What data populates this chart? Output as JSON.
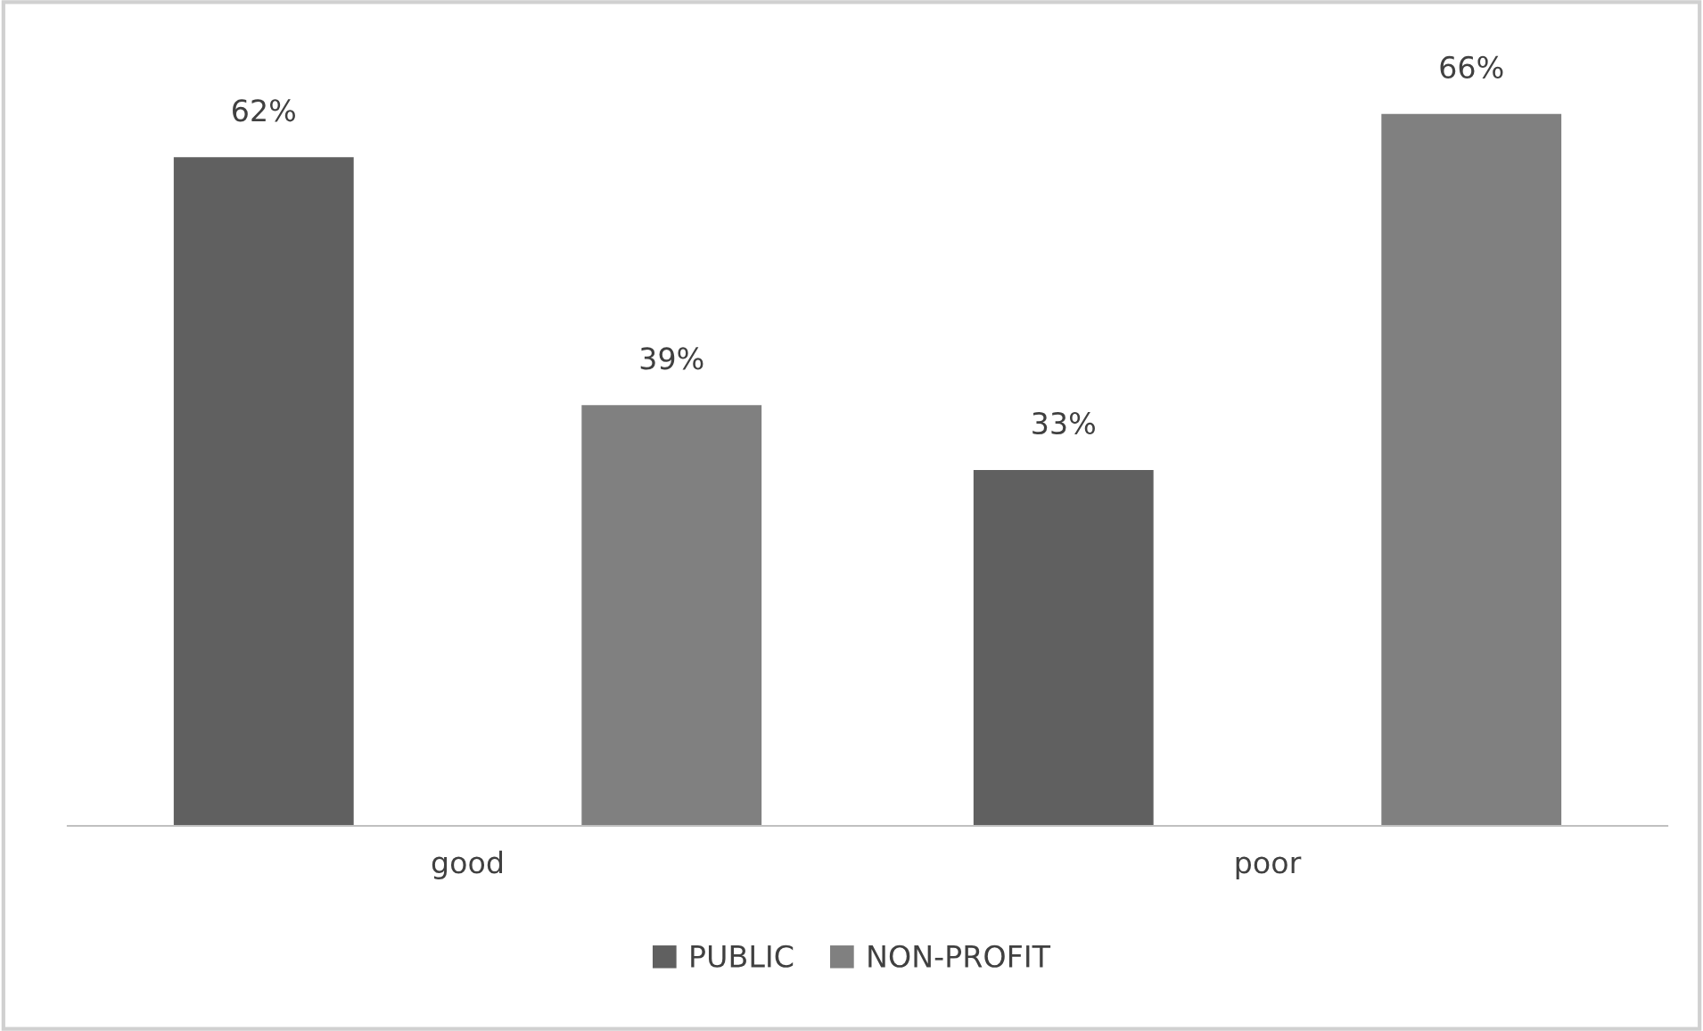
{
  "chart_data": {
    "type": "bar",
    "categories": [
      "good",
      "poor"
    ],
    "series": [
      {
        "name": "PUBLIC",
        "color": "#606060",
        "values": [
          62,
          33
        ],
        "value_labels": [
          "62%",
          "33%"
        ]
      },
      {
        "name": "NON-PROFIT",
        "color": "#808080",
        "values": [
          39,
          66
        ],
        "value_labels": [
          "39%",
          "66%"
        ]
      }
    ],
    "legend": "bottom",
    "grid": false
  }
}
